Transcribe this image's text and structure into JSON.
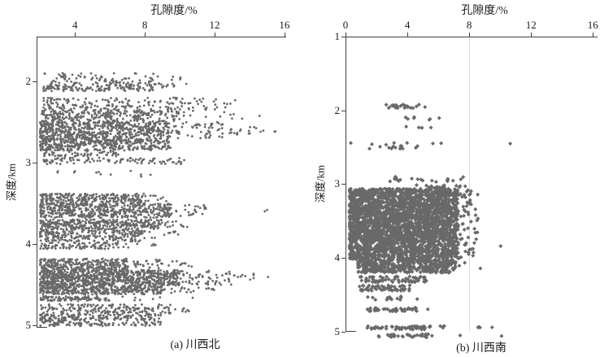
{
  "figure": {
    "title_left": "孔隙度/%",
    "title_right": "孔隙度/%",
    "point_color": "#696969",
    "axis_color": "#404040",
    "grid_color": "#dcdcdc",
    "text_color": "#1a1a1a",
    "background": "#ffffff"
  },
  "chart_data": [
    {
      "id": "a",
      "type": "scatter",
      "x_axis_label": "孔隙度/%",
      "y_axis_label": "深度/km",
      "caption": "(a) 川西北",
      "marker": "dot",
      "marker_size": 1.4,
      "x_axis_side": "top",
      "xlim": [
        1.8,
        16.1
      ],
      "xticks": [
        4,
        8,
        12,
        16
      ],
      "ylim": [
        1.45,
        5.03
      ],
      "yticks": [
        2,
        3,
        4,
        5
      ],
      "gridlines_x": [],
      "bands": [
        {
          "d": [
            1.9,
            2.02
          ],
          "p": [
            2.2,
            8.6
          ],
          "n": 75
        },
        {
          "d": [
            1.92,
            2.0
          ],
          "p": [
            8.6,
            10.4
          ],
          "n": 6
        },
        {
          "d": [
            2.02,
            2.12
          ],
          "p": [
            2.2,
            9.0
          ],
          "n": 150,
          "skew": 1.2
        },
        {
          "d": [
            2.03,
            2.1
          ],
          "p": [
            9.0,
            10.6
          ],
          "n": 8
        },
        {
          "d": [
            2.2,
            2.35
          ],
          "p": [
            2.2,
            12.2
          ],
          "n": 170,
          "skew": 1.3
        },
        {
          "d": [
            2.22,
            2.32
          ],
          "p": [
            12.2,
            13.3
          ],
          "n": 5
        },
        {
          "d": [
            2.35,
            2.5
          ],
          "p": [
            2.1,
            10.0
          ],
          "n": 280,
          "skew": 1.2
        },
        {
          "d": [
            2.36,
            2.46
          ],
          "p": [
            10.0,
            15.0
          ],
          "n": 12
        },
        {
          "d": [
            2.5,
            2.85
          ],
          "p": [
            2.0,
            9.5
          ],
          "n": 950,
          "skew": 1.15
        },
        {
          "d": [
            2.5,
            2.7
          ],
          "p": [
            9.5,
            12.5
          ],
          "n": 55
        },
        {
          "d": [
            2.55,
            2.66
          ],
          "p": [
            12.5,
            14.8
          ],
          "n": 18
        },
        {
          "d": [
            2.6,
            2.64
          ],
          "p": [
            15.2,
            15.7
          ],
          "n": 2
        },
        {
          "d": [
            2.86,
            2.93
          ],
          "p": [
            2.2,
            6.5
          ],
          "n": 55
        },
        {
          "d": [
            2.94,
            3.02
          ],
          "p": [
            2.2,
            10.3
          ],
          "n": 95,
          "skew": 1.2
        },
        {
          "d": [
            3.1,
            3.18
          ],
          "p": [
            2.8,
            8.6
          ],
          "n": 12
        },
        {
          "d": [
            3.38,
            3.5
          ],
          "p": [
            2.0,
            8.0
          ],
          "n": 240,
          "skew": 1.1
        },
        {
          "d": [
            3.4,
            3.48
          ],
          "p": [
            8.0,
            9.4
          ],
          "n": 10
        },
        {
          "d": [
            3.5,
            3.68
          ],
          "p": [
            2.0,
            9.5
          ],
          "n": 460,
          "skew": 1.1
        },
        {
          "d": [
            3.52,
            3.66
          ],
          "p": [
            9.5,
            11.8
          ],
          "n": 24
        },
        {
          "d": [
            3.58,
            3.62
          ],
          "p": [
            14.7,
            15.2
          ],
          "n": 2
        },
        {
          "d": [
            3.7,
            3.82
          ],
          "p": [
            2.0,
            9.0
          ],
          "n": 320,
          "skew": 1.1
        },
        {
          "d": [
            3.72,
            3.8
          ],
          "p": [
            9.0,
            10.6
          ],
          "n": 12
        },
        {
          "d": [
            3.82,
            3.97
          ],
          "p": [
            2.0,
            8.0
          ],
          "n": 230,
          "skew": 1.1
        },
        {
          "d": [
            3.84,
            3.95
          ],
          "p": [
            8.0,
            10.5
          ],
          "n": 10
        },
        {
          "d": [
            3.98,
            4.06
          ],
          "p": [
            2.0,
            6.5
          ],
          "n": 90
        },
        {
          "d": [
            3.99,
            4.05
          ],
          "p": [
            6.5,
            8.7
          ],
          "n": 8
        },
        {
          "d": [
            4.18,
            4.32
          ],
          "p": [
            2.0,
            7.0
          ],
          "n": 280,
          "skew": 1.1
        },
        {
          "d": [
            4.19,
            4.3
          ],
          "p": [
            7.0,
            9.0
          ],
          "n": 30
        },
        {
          "d": [
            4.2,
            4.3
          ],
          "p": [
            9.0,
            11.0
          ],
          "n": 10
        },
        {
          "d": [
            4.32,
            4.52
          ],
          "p": [
            2.0,
            10.0
          ],
          "n": 850,
          "skew": 1.15
        },
        {
          "d": [
            4.33,
            4.5
          ],
          "p": [
            10.0,
            13.0
          ],
          "n": 55
        },
        {
          "d": [
            4.36,
            4.44
          ],
          "p": [
            13.0,
            14.5
          ],
          "n": 10
        },
        {
          "d": [
            4.4,
            4.42
          ],
          "p": [
            14.9,
            15.1
          ],
          "n": 1
        },
        {
          "d": [
            4.52,
            4.62
          ],
          "p": [
            2.0,
            9.0
          ],
          "n": 320,
          "skew": 1.1
        },
        {
          "d": [
            4.53,
            4.6
          ],
          "p": [
            9.0,
            12.0
          ],
          "n": 22
        },
        {
          "d": [
            4.64,
            4.7
          ],
          "p": [
            2.0,
            5.5
          ],
          "n": 85
        },
        {
          "d": [
            4.64,
            4.7
          ],
          "p": [
            5.5,
            9.0
          ],
          "n": 12
        },
        {
          "d": [
            4.66,
            4.68
          ],
          "p": [
            10.7,
            11.0
          ],
          "n": 1
        },
        {
          "d": [
            4.74,
            4.86
          ],
          "p": [
            2.0,
            9.5
          ],
          "n": 170,
          "skew": 1.15
        },
        {
          "d": [
            4.76,
            4.84
          ],
          "p": [
            9.5,
            11.5
          ],
          "n": 7
        },
        {
          "d": [
            4.86,
            5.01
          ],
          "p": [
            2.0,
            9.0
          ],
          "n": 260,
          "skew": 1.2
        }
      ]
    },
    {
      "id": "b",
      "type": "scatter",
      "x_axis_label": "孔隙度/%",
      "y_axis_label": "深度/km",
      "caption": "(b) 川西南",
      "marker": "diamond",
      "marker_size": 2.5,
      "x_axis_side": "top",
      "xlim": [
        0,
        16.3
      ],
      "xticks": [
        0,
        4,
        8,
        12,
        16
      ],
      "ylim": [
        1.0,
        5.1
      ],
      "yticks": [
        1,
        2,
        3,
        4,
        5
      ],
      "gridlines_x": [
        8
      ],
      "bands": [
        {
          "d": [
            1.92,
            1.97
          ],
          "p": [
            2.6,
            5.2
          ],
          "n": 24
        },
        {
          "d": [
            2.09,
            2.13
          ],
          "p": [
            3.5,
            6.3
          ],
          "n": 7
        },
        {
          "d": [
            2.2,
            2.24
          ],
          "p": [
            3.7,
            5.6
          ],
          "n": 5
        },
        {
          "d": [
            2.44,
            2.52
          ],
          "p": [
            0.3,
            4.8
          ],
          "n": 17
        },
        {
          "d": [
            2.42,
            2.45
          ],
          "p": [
            5.5,
            6.6
          ],
          "n": 2
        },
        {
          "d": [
            2.44,
            2.46
          ],
          "p": [
            10.5,
            10.8
          ],
          "n": 1
        },
        {
          "d": [
            2.9,
            2.97
          ],
          "p": [
            2.3,
            7.7
          ],
          "n": 22
        },
        {
          "d": [
            3.0,
            3.05
          ],
          "p": [
            4.3,
            8.0
          ],
          "n": 16
        },
        {
          "d": [
            3.06,
            4.02
          ],
          "p": [
            0.25,
            7.3
          ],
          "n": 2800,
          "skew": 1.05
        },
        {
          "d": [
            3.08,
            4.0
          ],
          "p": [
            7.3,
            8.6
          ],
          "n": 55
        },
        {
          "d": [
            3.83,
            3.86
          ],
          "p": [
            10.0,
            10.3
          ],
          "n": 1
        },
        {
          "d": [
            4.02,
            4.2
          ],
          "p": [
            0.8,
            7.0
          ],
          "n": 380,
          "skew": 1.05
        },
        {
          "d": [
            4.04,
            4.18
          ],
          "p": [
            7.0,
            7.8
          ],
          "n": 6
        },
        {
          "d": [
            4.12,
            4.15
          ],
          "p": [
            8.7,
            9.0
          ],
          "n": 1
        },
        {
          "d": [
            4.25,
            4.33
          ],
          "p": [
            0.9,
            5.3
          ],
          "n": 65
        },
        {
          "d": [
            4.37,
            4.45
          ],
          "p": [
            0.9,
            4.2
          ],
          "n": 55
        },
        {
          "d": [
            4.52,
            4.58
          ],
          "p": [
            1.3,
            3.6
          ],
          "n": 13
        },
        {
          "d": [
            4.53,
            4.56
          ],
          "p": [
            4.6,
            5.0
          ],
          "n": 1
        },
        {
          "d": [
            4.67,
            4.73
          ],
          "p": [
            1.4,
            4.6
          ],
          "n": 42
        },
        {
          "d": [
            4.69,
            4.71
          ],
          "p": [
            5.1,
            5.4
          ],
          "n": 1
        },
        {
          "d": [
            4.92,
            4.97
          ],
          "p": [
            1.4,
            5.6
          ],
          "n": 48
        },
        {
          "d": [
            4.92,
            4.95
          ],
          "p": [
            6.0,
            7.0
          ],
          "n": 4
        },
        {
          "d": [
            4.92,
            4.95
          ],
          "p": [
            8.4,
            9.5
          ],
          "n": 4
        },
        {
          "d": [
            5.03,
            5.08
          ],
          "p": [
            2.1,
            5.6
          ],
          "n": 32
        },
        {
          "d": [
            5.04,
            5.06
          ],
          "p": [
            7.2,
            7.5
          ],
          "n": 1
        },
        {
          "d": [
            5.05,
            5.07
          ],
          "p": [
            9.8,
            10.1
          ],
          "n": 1
        }
      ]
    }
  ]
}
